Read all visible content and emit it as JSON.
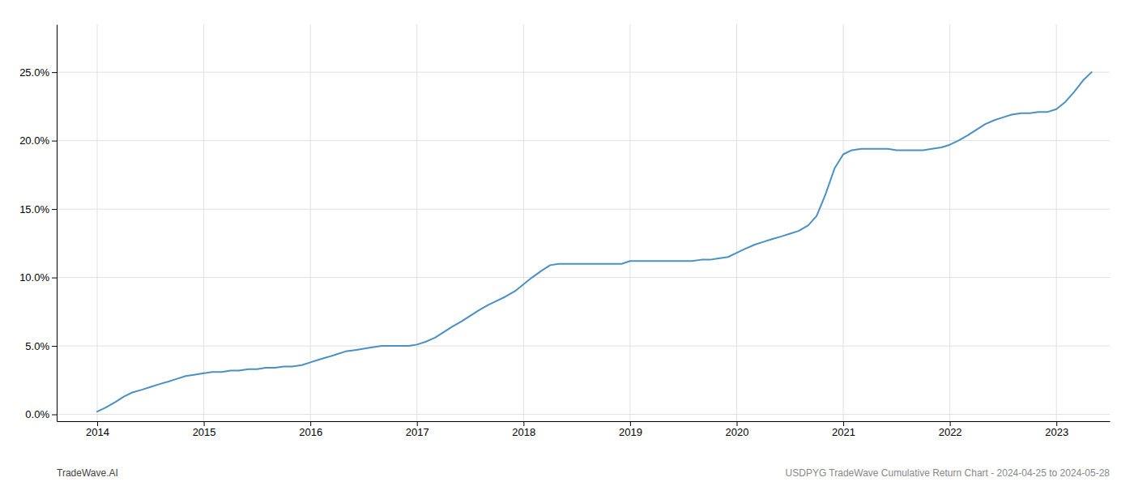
{
  "chart_data": {
    "type": "line",
    "color": "#4a90c4",
    "grid": true,
    "annotations": [
      "TradeWave.AI",
      "USDPYG TradeWave Cumulative Return Chart - 2024-04-25 to 2024-05-28"
    ],
    "xlim": [
      2013.62,
      2023.5
    ],
    "xticks": [
      2014,
      2015,
      2016,
      2017,
      2018,
      2019,
      2020,
      2021,
      2022,
      2023
    ],
    "ylim": [
      -0.005,
      0.285
    ],
    "yticks": [
      {
        "value": 0.0,
        "label": "0.0%"
      },
      {
        "value": 0.05,
        "label": "5.0%"
      },
      {
        "value": 0.1,
        "label": "10.0%"
      },
      {
        "value": 0.15,
        "label": "15.0%"
      },
      {
        "value": 0.2,
        "label": "20.0%"
      },
      {
        "value": 0.25,
        "label": "25.0%"
      }
    ],
    "x": [
      2014.0,
      2014.08,
      2014.17,
      2014.25,
      2014.33,
      2014.42,
      2014.5,
      2014.58,
      2014.67,
      2014.75,
      2014.83,
      2014.92,
      2015.0,
      2015.08,
      2015.17,
      2015.25,
      2015.33,
      2015.42,
      2015.5,
      2015.58,
      2015.67,
      2015.75,
      2015.83,
      2015.92,
      2016.0,
      2016.08,
      2016.17,
      2016.25,
      2016.33,
      2016.42,
      2016.5,
      2016.58,
      2016.67,
      2016.75,
      2016.83,
      2016.92,
      2017.0,
      2017.08,
      2017.17,
      2017.25,
      2017.33,
      2017.42,
      2017.5,
      2017.58,
      2017.67,
      2017.75,
      2017.83,
      2017.92,
      2018.0,
      2018.08,
      2018.17,
      2018.25,
      2018.33,
      2018.42,
      2018.5,
      2018.58,
      2018.67,
      2018.75,
      2018.83,
      2018.92,
      2019.0,
      2019.08,
      2019.17,
      2019.25,
      2019.33,
      2019.42,
      2019.5,
      2019.58,
      2019.67,
      2019.75,
      2019.83,
      2019.92,
      2020.0,
      2020.08,
      2020.17,
      2020.25,
      2020.33,
      2020.42,
      2020.5,
      2020.58,
      2020.67,
      2020.75,
      2020.83,
      2020.92,
      2021.0,
      2021.08,
      2021.17,
      2021.25,
      2021.33,
      2021.42,
      2021.5,
      2021.58,
      2021.67,
      2021.75,
      2021.83,
      2021.92,
      2022.0,
      2022.08,
      2022.17,
      2022.25,
      2022.33,
      2022.42,
      2022.5,
      2022.58,
      2022.67,
      2022.75,
      2022.83,
      2022.92,
      2023.0,
      2023.08,
      2023.17,
      2023.25,
      2023.33
    ],
    "values": [
      0.002,
      0.005,
      0.009,
      0.013,
      0.016,
      0.018,
      0.02,
      0.022,
      0.024,
      0.026,
      0.028,
      0.029,
      0.03,
      0.031,
      0.031,
      0.032,
      0.032,
      0.033,
      0.033,
      0.034,
      0.034,
      0.035,
      0.035,
      0.036,
      0.038,
      0.04,
      0.042,
      0.044,
      0.046,
      0.047,
      0.048,
      0.049,
      0.05,
      0.05,
      0.05,
      0.05,
      0.051,
      0.053,
      0.056,
      0.06,
      0.064,
      0.068,
      0.072,
      0.076,
      0.08,
      0.083,
      0.086,
      0.09,
      0.095,
      0.1,
      0.105,
      0.109,
      0.11,
      0.11,
      0.11,
      0.11,
      0.11,
      0.11,
      0.11,
      0.11,
      0.112,
      0.112,
      0.112,
      0.112,
      0.112,
      0.112,
      0.112,
      0.112,
      0.113,
      0.113,
      0.114,
      0.115,
      0.118,
      0.121,
      0.124,
      0.126,
      0.128,
      0.13,
      0.132,
      0.134,
      0.138,
      0.145,
      0.16,
      0.18,
      0.19,
      0.193,
      0.194,
      0.194,
      0.194,
      0.194,
      0.193,
      0.193,
      0.193,
      0.193,
      0.194,
      0.195,
      0.197,
      0.2,
      0.204,
      0.208,
      0.212,
      0.215,
      0.217,
      0.219,
      0.22,
      0.22,
      0.221,
      0.221,
      0.223,
      0.228,
      0.236,
      0.244,
      0.25
    ]
  }
}
